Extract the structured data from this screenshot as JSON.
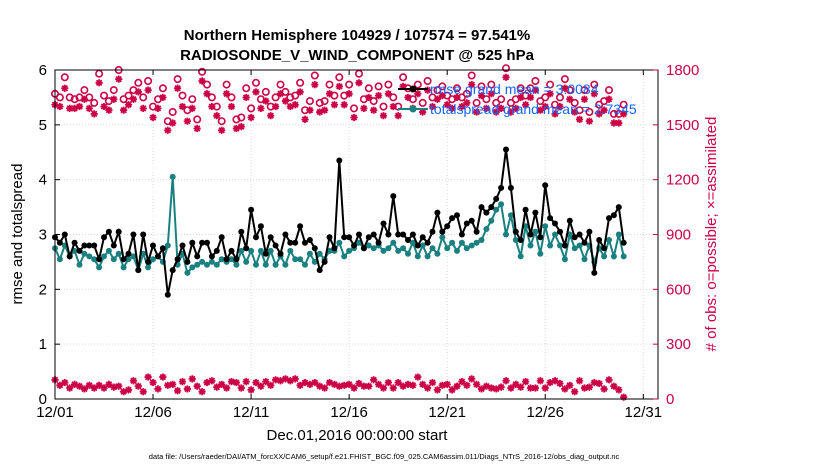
{
  "chart_data": {
    "type": "line",
    "title": "Northern Hemisphere 104929 / 107574 = 97.541%",
    "subtitle": "RADIOSONDE_V_WIND_COMPONENT @ 525 hPa",
    "xlabel": "Dec.01,2016 00:00:00 start",
    "ylabel_left": "rmse and totalspread",
    "ylabel_right": "# of obs: o=possible; ×=assimilated",
    "footnote": "data file: /Users/raeder/DAI/ATM_forcXX/CAM6_setup/f.e21.FHIST_BGC.f09_025.CAM6assim.011/Diags_NTrS_2016-12/obs_diag_output.nc",
    "x_tick_labels": [
      "12/01",
      "12/06",
      "12/11",
      "12/16",
      "12/21",
      "12/26",
      "12/31"
    ],
    "x_tick_days": [
      0,
      5,
      10,
      15,
      20,
      25,
      30
    ],
    "xlim_days": [
      0,
      30.75
    ],
    "ylim_left": [
      0,
      6
    ],
    "y_ticks_left": [
      "0",
      "1",
      "2",
      "3",
      "4",
      "5",
      "6"
    ],
    "ylim_right": [
      0,
      1800
    ],
    "y_ticks_right": [
      "0",
      "300",
      "600",
      "900",
      "1200",
      "1500",
      "1800"
    ],
    "grid": true,
    "legend": {
      "position": "top-right",
      "entries": [
        "rmse grand mean = 3.0084",
        "totalspread grand mean = 2.7345"
      ]
    },
    "x_step_days": 0.25,
    "series": [
      {
        "name": "rmse",
        "axis": "left",
        "color": "#000000",
        "values": [
          2.95,
          2.85,
          3.0,
          2.6,
          2.85,
          2.7,
          2.8,
          2.8,
          2.8,
          2.55,
          2.95,
          3.05,
          2.8,
          3.05,
          2.55,
          2.65,
          3.0,
          2.35,
          3.0,
          2.5,
          2.8,
          2.6,
          2.75,
          1.9,
          2.35,
          2.55,
          2.8,
          2.5,
          2.85,
          2.6,
          2.85,
          2.85,
          2.6,
          2.7,
          2.95,
          2.55,
          2.7,
          2.55,
          3.05,
          2.75,
          3.45,
          2.95,
          3.15,
          2.65,
          2.95,
          2.8,
          2.65,
          3.0,
          2.85,
          2.85,
          3.15,
          2.85,
          2.9,
          2.75,
          2.35,
          2.5,
          2.95,
          2.75,
          4.35,
          2.95,
          2.95,
          2.8,
          3.0,
          2.75,
          2.95,
          3.0,
          2.85,
          3.2,
          3.0,
          3.7,
          3.0,
          3.0,
          2.9,
          3.0,
          2.8,
          2.95,
          2.85,
          3.05,
          3.4,
          3.05,
          3.15,
          3.3,
          3.35,
          3.0,
          3.2,
          3.25,
          3.05,
          3.5,
          3.4,
          3.5,
          3.65,
          3.85,
          4.55,
          3.85,
          3.05,
          2.9,
          3.45,
          3.0,
          3.4,
          2.95,
          3.9,
          3.3,
          3.2,
          3.05,
          2.8,
          3.25,
          2.95,
          3.0,
          2.85,
          3.05,
          2.3,
          2.9,
          2.75,
          3.3,
          3.35,
          3.5,
          2.85
        ]
      },
      {
        "name": "totalspread",
        "axis": "left",
        "color": "#1a8080",
        "values": [
          2.75,
          2.55,
          2.8,
          2.6,
          2.7,
          2.45,
          2.65,
          2.6,
          2.55,
          2.4,
          2.6,
          2.7,
          2.55,
          2.65,
          2.4,
          2.55,
          2.6,
          2.35,
          2.65,
          2.4,
          2.55,
          2.6,
          2.5,
          2.8,
          4.05,
          2.45,
          2.65,
          2.3,
          2.4,
          2.45,
          2.5,
          2.45,
          2.5,
          2.45,
          2.55,
          2.5,
          2.55,
          2.45,
          2.7,
          2.5,
          2.7,
          2.45,
          2.7,
          2.45,
          2.7,
          2.45,
          2.6,
          2.45,
          2.7,
          2.55,
          2.55,
          2.45,
          2.65,
          2.5,
          2.65,
          2.55,
          2.7,
          2.7,
          2.85,
          2.6,
          2.7,
          2.75,
          2.85,
          2.75,
          2.8,
          2.75,
          2.8,
          2.7,
          2.75,
          2.85,
          2.7,
          2.75,
          2.65,
          2.85,
          2.6,
          2.8,
          2.6,
          2.75,
          2.65,
          2.95,
          2.75,
          2.85,
          2.7,
          2.85,
          2.75,
          2.8,
          2.85,
          2.9,
          3.1,
          3.25,
          3.45,
          3.55,
          3.0,
          3.35,
          2.9,
          2.6,
          3.15,
          2.8,
          3.05,
          2.65,
          3.15,
          2.8,
          3.0,
          2.8,
          2.55,
          3.0,
          2.75,
          2.8,
          2.55,
          2.8,
          2.5,
          2.75,
          2.6,
          2.9,
          2.6,
          3.0,
          2.6
        ]
      },
      {
        "name": "obs possible",
        "axis": "right",
        "color": "#cc0044",
        "values": [
          1670,
          1650,
          1760,
          1650,
          1640,
          1650,
          1690,
          1650,
          1620,
          1780,
          1660,
          1630,
          1690,
          1800,
          1640,
          1660,
          1690,
          1730,
          1650,
          1740,
          1600,
          1640,
          1700,
          1520,
          1570,
          1750,
          1660,
          1580,
          1640,
          1530,
          1790,
          1720,
          1650,
          1600,
          1520,
          1720,
          1650,
          1530,
          1540,
          1700,
          1590,
          1730,
          1640,
          1680,
          1600,
          1650,
          1720,
          1680,
          1650,
          1660,
          1730,
          1580,
          1630,
          1770,
          1620,
          1630,
          1720,
          1660,
          1760,
          1660,
          1720,
          1590,
          1780,
          1640,
          1700,
          1630,
          1710,
          1600,
          1720,
          1650,
          1600,
          1760,
          1700,
          1640,
          1720,
          1620,
          1740,
          1650,
          1690,
          1710,
          1660,
          1640,
          1700,
          1650,
          1670,
          1770,
          1620,
          1710,
          1640,
          1720,
          1620,
          1640,
          1810,
          1620,
          1640,
          1700,
          1660,
          1700,
          1740,
          1630,
          1650,
          1720,
          1610,
          1650,
          1750,
          1690,
          1620,
          1580,
          1690,
          1570,
          1720,
          1610,
          1630,
          1690,
          1560,
          1560,
          1610
        ]
      },
      {
        "name": "obs assimilated",
        "axis": "right",
        "color": "#cc0044",
        "values": [
          1610,
          1600,
          1700,
          1590,
          1590,
          1600,
          1640,
          1590,
          1560,
          1730,
          1600,
          1580,
          1640,
          1750,
          1580,
          1610,
          1640,
          1680,
          1590,
          1690,
          1540,
          1590,
          1650,
          1470,
          1510,
          1700,
          1600,
          1520,
          1590,
          1480,
          1740,
          1670,
          1600,
          1550,
          1470,
          1670,
          1600,
          1480,
          1490,
          1650,
          1540,
          1680,
          1590,
          1630,
          1550,
          1600,
          1670,
          1630,
          1600,
          1610,
          1680,
          1530,
          1580,
          1720,
          1570,
          1580,
          1670,
          1610,
          1710,
          1610,
          1670,
          1540,
          1730,
          1590,
          1650,
          1580,
          1660,
          1550,
          1670,
          1600,
          1550,
          1710,
          1650,
          1590,
          1670,
          1570,
          1690,
          1600,
          1640,
          1660,
          1610,
          1590,
          1650,
          1600,
          1620,
          1720,
          1570,
          1660,
          1590,
          1670,
          1570,
          1590,
          1760,
          1570,
          1590,
          1650,
          1610,
          1650,
          1690,
          1580,
          1600,
          1670,
          1560,
          1600,
          1700,
          1640,
          1570,
          1530,
          1640,
          1520,
          1670,
          1560,
          1580,
          1640,
          1510,
          1510,
          1560
        ]
      },
      {
        "name": "obs possible (low)",
        "axis": "right",
        "color": "#cc0044",
        "values": [
          105,
          75,
          90,
          60,
          80,
          70,
          55,
          75,
          60,
          75,
          60,
          80,
          65,
          70,
          40,
          50,
          100,
          70,
          40,
          120,
          90,
          55,
          120,
          75,
          80,
          45,
          95,
          55,
          110,
          70,
          40,
          90,
          100,
          65,
          80,
          60,
          95,
          90,
          60,
          95,
          50,
          90,
          70,
          95,
          75,
          105,
          100,
          110,
          100,
          110,
          75,
          90,
          80,
          90,
          70,
          60,
          90,
          80,
          70,
          75,
          80,
          60,
          85,
          70,
          70,
          105,
          80,
          60,
          90,
          60,
          90,
          70,
          80,
          75,
          120,
          80,
          60,
          90,
          50,
          75,
          80,
          50,
          70,
          95,
          75,
          110,
          80,
          55,
          70,
          60,
          55,
          65,
          100,
          60,
          80,
          65,
          95,
          60,
          60,
          100,
          60,
          90,
          100,
          85,
          55,
          75,
          40,
          100,
          60,
          65,
          90,
          85,
          55,
          105,
          70,
          50,
          10
        ]
      }
    ]
  }
}
